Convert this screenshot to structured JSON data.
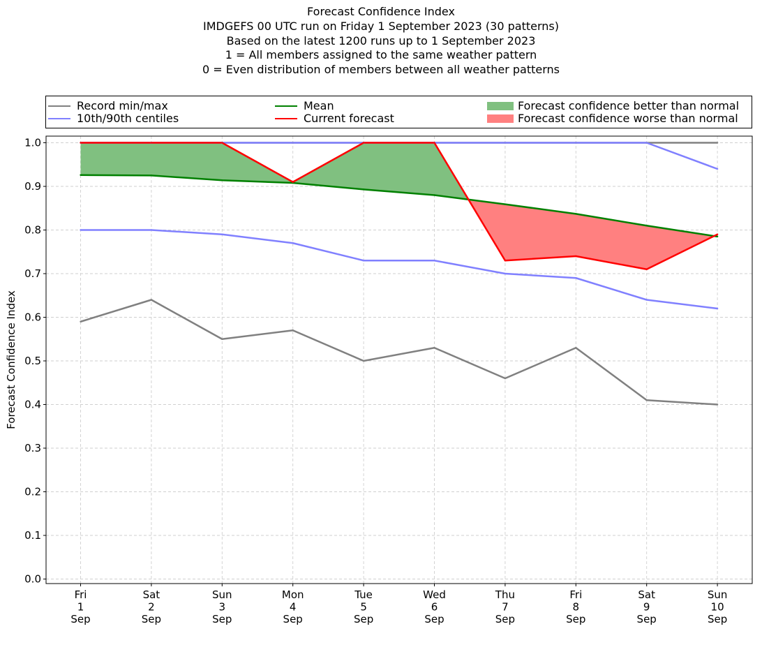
{
  "title_lines": [
    "Forecast Confidence Index",
    "IMDGEFS 00 UTC run on Friday 1 September 2023 (30 patterns)",
    "Based on the latest 1200 runs up to 1 September 2023",
    "1 = All members assigned to the same weather pattern",
    "0 = Even distribution of members between all weather patterns"
  ],
  "legend": {
    "record": "Record min/max",
    "centiles": "10th/90th centiles",
    "mean": "Mean",
    "current": "Current forecast",
    "better": "Forecast confidence better than normal",
    "worse": "Forecast confidence worse than normal"
  },
  "colors": {
    "record": "#808080",
    "centiles": "#8080ff",
    "mean": "#008000",
    "current": "#ff0000",
    "better": "#80c080",
    "worse": "#ff8080",
    "record_max_overlap": "#4040a0"
  },
  "chart_data": {
    "type": "line",
    "ylabel": "Forecast Confidence Index",
    "ylim": [
      0.0,
      1.0
    ],
    "yticks": [
      "0.0",
      "0.1",
      "0.2",
      "0.3",
      "0.4",
      "0.5",
      "0.6",
      "0.7",
      "0.8",
      "0.9",
      "1.0"
    ],
    "grid": true,
    "legend_position": "top",
    "categories": [
      [
        "Fri",
        "1",
        "Sep"
      ],
      [
        "Sat",
        "2",
        "Sep"
      ],
      [
        "Sun",
        "3",
        "Sep"
      ],
      [
        "Mon",
        "4",
        "Sep"
      ],
      [
        "Tue",
        "5",
        "Sep"
      ],
      [
        "Wed",
        "6",
        "Sep"
      ],
      [
        "Thu",
        "7",
        "Sep"
      ],
      [
        "Fri",
        "8",
        "Sep"
      ],
      [
        "Sat",
        "9",
        "Sep"
      ],
      [
        "Sun",
        "10",
        "Sep"
      ]
    ],
    "series": [
      {
        "name": "Record min/max",
        "role": "record_min",
        "values": [
          0.59,
          0.64,
          0.55,
          0.57,
          0.5,
          0.53,
          0.46,
          0.53,
          0.41,
          0.4
        ]
      },
      {
        "name": "Record min/max",
        "role": "record_max",
        "values": [
          1.0,
          1.0,
          1.0,
          1.0,
          1.0,
          1.0,
          1.0,
          1.0,
          1.0,
          1.0
        ]
      },
      {
        "name": "10th/90th centiles",
        "role": "p10",
        "values": [
          0.8,
          0.8,
          0.79,
          0.77,
          0.73,
          0.73,
          0.7,
          0.69,
          0.64,
          0.62
        ]
      },
      {
        "name": "10th/90th centiles",
        "role": "p90",
        "values": [
          1.0,
          1.0,
          1.0,
          1.0,
          1.0,
          1.0,
          1.0,
          1.0,
          1.0,
          0.94
        ]
      },
      {
        "name": "Mean",
        "role": "mean",
        "values": [
          0.926,
          0.925,
          0.914,
          0.908,
          0.893,
          0.88,
          0.859,
          0.837,
          0.81,
          0.785
        ]
      },
      {
        "name": "Current forecast",
        "role": "current",
        "values": [
          1.0,
          1.0,
          1.0,
          0.91,
          1.0,
          1.0,
          0.73,
          0.74,
          0.71,
          0.79
        ]
      }
    ]
  }
}
